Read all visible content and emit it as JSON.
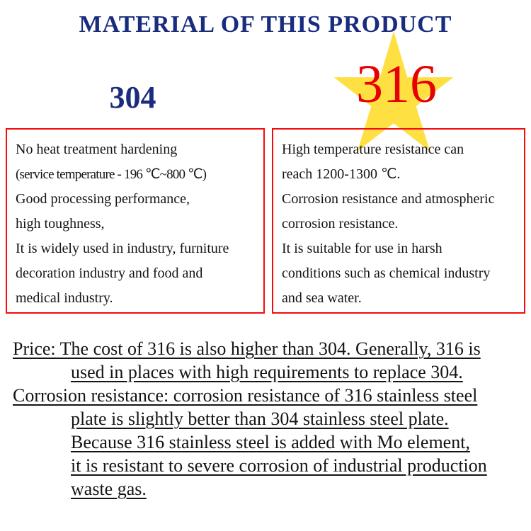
{
  "title": "MATERIAL OF THIS PRODUCT",
  "colors": {
    "title_blue": "#1a2c7e",
    "accent_red": "#e60000",
    "star_yellow": "#ffe042",
    "box_border_red": "#f40b0b",
    "body_text": "#141414"
  },
  "icons": {
    "star": "star-decoration"
  },
  "columns": {
    "left": {
      "heading": "304",
      "lines": [
        "No heat treatment hardening",
        " (service temperature - 196 ℃~800 ℃)",
        "Good processing performance,",
        "high toughness,",
        "It is widely used in industry, furniture",
        "decoration industry and food and",
        "medical industry."
      ]
    },
    "right": {
      "heading": "316",
      "lines": [
        "High temperature resistance can",
        "reach 1200-1300 ℃.",
        "Corrosion resistance and atmospheric",
        "corrosion resistance.",
        "It is suitable for use in harsh",
        "conditions such as chemical industry",
        "and sea water."
      ]
    }
  },
  "notes": {
    "lines": [
      "Price: The cost of 316 is also higher than 304. Generally, 316 is",
      "used in places with high requirements to replace 304.",
      "Corrosion resistance: corrosion resistance of 316 stainless steel",
      "plate is slightly better than 304 stainless steel plate.",
      "Because 316 stainless steel is added with Mo element,",
      "it is resistant to severe corrosion of industrial production",
      "waste gas."
    ]
  }
}
